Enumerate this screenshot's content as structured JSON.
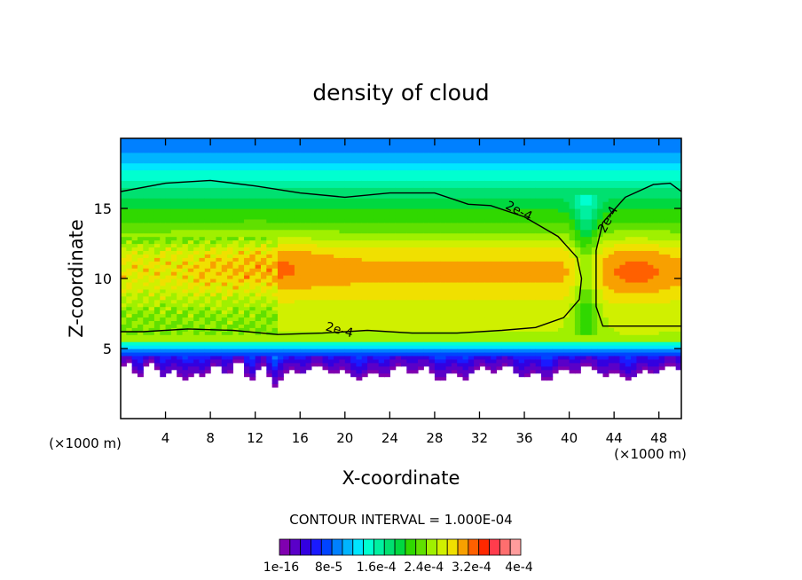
{
  "chart_data": {
    "type": "heatmap",
    "title": "density of cloud",
    "xlabel": "X-coordinate",
    "ylabel": "Z-coordinate",
    "x_unit": "(×1000 m)",
    "y_unit": "(×1000 m)",
    "xlim": [
      0,
      50
    ],
    "ylim": [
      0,
      20
    ],
    "x_ticks": [
      4,
      8,
      12,
      16,
      20,
      24,
      28,
      32,
      36,
      40,
      44,
      48
    ],
    "y_ticks": [
      5,
      10,
      15
    ],
    "contour_interval_text": "CONTOUR INTERVAL = 1.000E-04",
    "contour_label": "2e-4",
    "contour_level": 0.0002,
    "colorbar": {
      "min": 1e-16,
      "max": 0.0004,
      "levels": 22,
      "tick_labels": [
        "1e-16",
        "8e-5",
        "1.6e-4",
        "2.4e-4",
        "3.2e-4",
        "4e-4"
      ],
      "colors": [
        "#8000b0",
        "#5a00c8",
        "#3300e0",
        "#1a1aff",
        "#0044ff",
        "#0080ff",
        "#00b4ff",
        "#00e6ff",
        "#00ffd0",
        "#00f0a0",
        "#00e070",
        "#00d840",
        "#30d800",
        "#60e000",
        "#a0f000",
        "#d0f000",
        "#f0e000",
        "#f8a000",
        "#ff6000",
        "#ff2800",
        "#ff3c4c",
        "#ff6e6e",
        "#ff9c9c"
      ]
    },
    "field_summary": [
      {
        "z_range": [
          0,
          3
        ],
        "value": 0
      },
      {
        "z_range": [
          3,
          4.5
        ],
        "value": 2e-05
      },
      {
        "z_range": [
          4.5,
          6
        ],
        "value": 0.00015
      },
      {
        "z_range": [
          6,
          11
        ],
        "value": 0.00028
      },
      {
        "z_range": [
          11,
          16
        ],
        "value": 0.00024
      },
      {
        "z_range": [
          16,
          20
        ],
        "value": 0.00016
      }
    ]
  }
}
